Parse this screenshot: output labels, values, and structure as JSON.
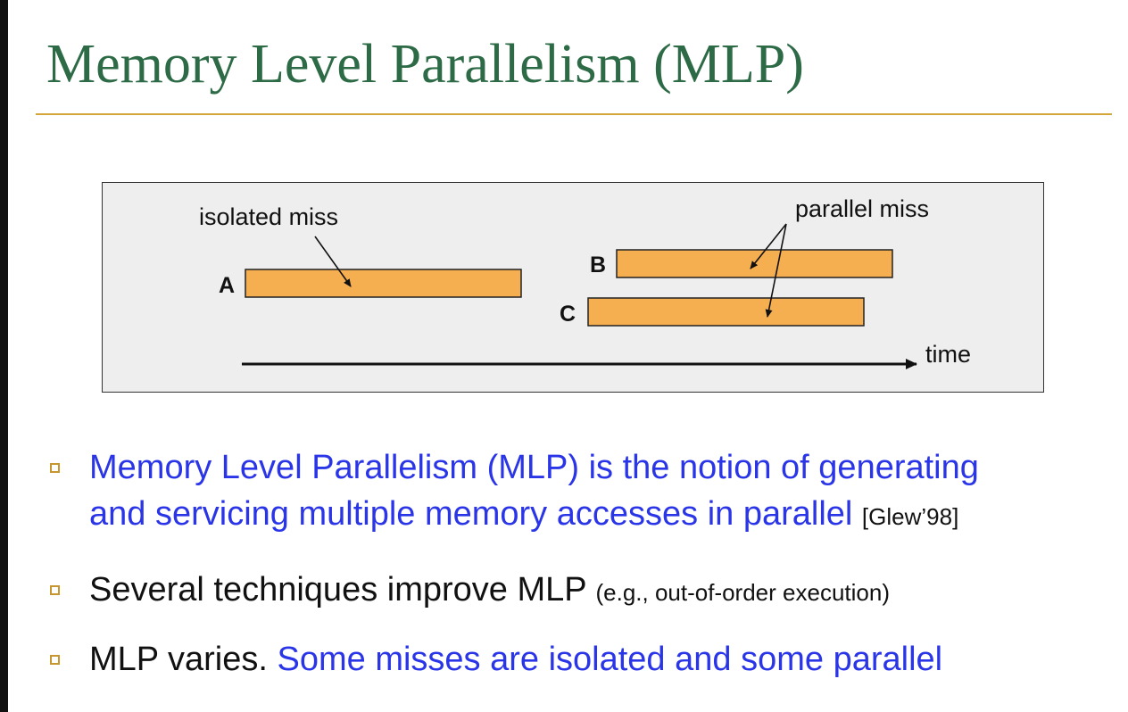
{
  "slide": {
    "title": "Memory Level Parallelism (MLP)"
  },
  "diagram": {
    "labels": {
      "isolated": "isolated miss",
      "parallel": "parallel miss",
      "time": "time",
      "a": "A",
      "b": "B",
      "c": "C"
    },
    "colors": {
      "bar_fill": "#f5ae50",
      "bar_stroke": "#222222",
      "panel_bg": "#eeeeee"
    }
  },
  "bullets": [
    {
      "line1": "Memory Level Parallelism (MLP) is the notion of generating",
      "line2": "and servicing multiple memory accesses in parallel",
      "cite": "[Glew’98]"
    },
    {
      "main": "Several techniques improve MLP",
      "note": "(e.g., out-of-order execution)"
    },
    {
      "main": "MLP varies.",
      "highlight": "Some misses are isolated and some parallel"
    }
  ],
  "colors": {
    "title": "#2d6a46",
    "rule": "#d4a63a",
    "blue_text": "#2a35e8",
    "bullet_box": "#c8962e"
  }
}
